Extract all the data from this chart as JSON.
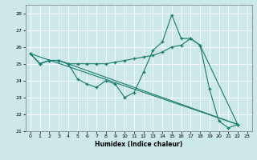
{
  "xlabel": "Humidex (Indice chaleur)",
  "bg_color": "#cce8e8",
  "grid_color": "#ffffff",
  "line_color": "#1a7a6a",
  "xlim": [
    -0.5,
    23.5
  ],
  "ylim": [
    21.0,
    28.5
  ],
  "yticks": [
    21,
    22,
    23,
    24,
    25,
    26,
    27,
    28
  ],
  "xticks": [
    0,
    1,
    2,
    3,
    4,
    5,
    6,
    7,
    8,
    9,
    10,
    11,
    12,
    13,
    14,
    15,
    16,
    17,
    18,
    19,
    20,
    21,
    22,
    23
  ],
  "line1_x": [
    0,
    1,
    2,
    3,
    4,
    5,
    6,
    7,
    8,
    9,
    10,
    11,
    12,
    13,
    14,
    15,
    16,
    17,
    18,
    19,
    20,
    21,
    22
  ],
  "line1_y": [
    25.6,
    25.0,
    25.2,
    25.2,
    25.0,
    24.1,
    23.8,
    23.6,
    24.0,
    23.8,
    23.0,
    23.3,
    24.5,
    25.8,
    26.3,
    27.9,
    26.5,
    26.5,
    26.1,
    23.5,
    21.6,
    21.2,
    21.4
  ],
  "line2_x": [
    0,
    1,
    2,
    3,
    4,
    5,
    6,
    7,
    8,
    9,
    10,
    11,
    12,
    13,
    14,
    15,
    16,
    17,
    18,
    22
  ],
  "line2_y": [
    25.6,
    25.0,
    25.2,
    25.2,
    25.0,
    25.0,
    25.0,
    25.0,
    25.0,
    25.1,
    25.2,
    25.3,
    25.4,
    25.5,
    25.7,
    26.0,
    26.1,
    26.5,
    26.1,
    21.4
  ],
  "line3_x": [
    0,
    1,
    2,
    3,
    4,
    22
  ],
  "line3_y": [
    25.6,
    25.0,
    25.2,
    25.2,
    25.0,
    21.4
  ],
  "line4_x": [
    0,
    22
  ],
  "line4_y": [
    25.6,
    21.4
  ],
  "has_markers_line1": true,
  "has_markers_line2": true,
  "has_markers_line3": false,
  "has_markers_line4": false
}
